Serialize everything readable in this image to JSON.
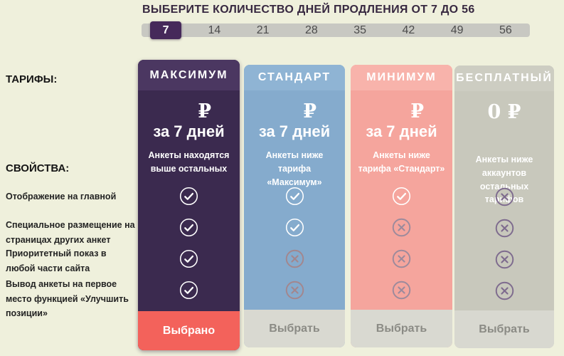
{
  "page": {
    "title": "ВЫБЕРИТЕ КОЛИЧЕСТВО ДНЕЙ ПРОДЛЕНИЯ ОТ 7 ДО 56",
    "background": "#eff0dc",
    "title_color": "#372840"
  },
  "day_selector": {
    "options": [
      "7",
      "14",
      "21",
      "28",
      "35",
      "42",
      "49",
      "56"
    ],
    "selected": "7",
    "bar_color": "#c8c8c2",
    "option_text": "#4c4c4c",
    "selected_bg": "#46295a",
    "selected_text": "#ffffff"
  },
  "labels": {
    "tariffs": "ТАРИФЫ:",
    "properties": "СВОЙСТВА:"
  },
  "features": [
    "Отображение на главной",
    "Специальное размещение на страницах других анкет",
    "Приоритетный показ в любой части сайта",
    "Вывод анкеты на первое место функцией «Улучшить позиции»"
  ],
  "columns": [
    {
      "name": "МАКСИМУМ",
      "price": "₽",
      "duration": "за 7 дней",
      "description": "Анкеты находятся выше остальных",
      "features": [
        "check",
        "check",
        "check",
        "check"
      ],
      "button": {
        "label": "Выбрано",
        "state": "selected"
      },
      "colors": {
        "header": "#4b3761",
        "body": "#3b2a4f",
        "button": "#f3625b",
        "button_text": "#ffffff",
        "check": "#ffffff"
      }
    },
    {
      "name": "СТАНДАРТ",
      "price": "₽",
      "duration": "за 7 дней",
      "description": "Анкеты ниже тарифа «Максимум»",
      "features": [
        "check",
        "check",
        "cross",
        "cross"
      ],
      "button": {
        "label": "Выбрать",
        "state": "normal"
      },
      "colors": {
        "header": "#8fb4d4",
        "body": "#85abcd",
        "button": "#d9d9d1",
        "button_text": "#8b8b85",
        "check": "#ffffff",
        "cross": "#a3868d"
      }
    },
    {
      "name": "МИНИМУМ",
      "price": "₽",
      "duration": "за 7 дней",
      "description": "Анкеты ниже тарифа «Стандарт»",
      "features": [
        "check",
        "cross",
        "cross",
        "cross"
      ],
      "button": {
        "label": "Выбрать",
        "state": "normal"
      },
      "colors": {
        "header": "#f8b3ab",
        "body": "#f5a59d",
        "button": "#d9d9d1",
        "button_text": "#8b8b85",
        "check": "#ffffff",
        "cross": "#9c8a9c"
      }
    },
    {
      "name": "БЕСПЛАТНЫЙ",
      "price": "0 ₽",
      "duration": "",
      "description": "Анкеты ниже аккаунтов остальных тарифов",
      "features": [
        "cross",
        "cross",
        "cross",
        "cross"
      ],
      "button": {
        "label": "Выбрать",
        "state": "normal"
      },
      "colors": {
        "header": "#cdcdc2",
        "body": "#c8c8bc",
        "button": "#d8d8d0",
        "button_text": "#8b8b85",
        "cross": "#7e6b8e"
      }
    }
  ]
}
